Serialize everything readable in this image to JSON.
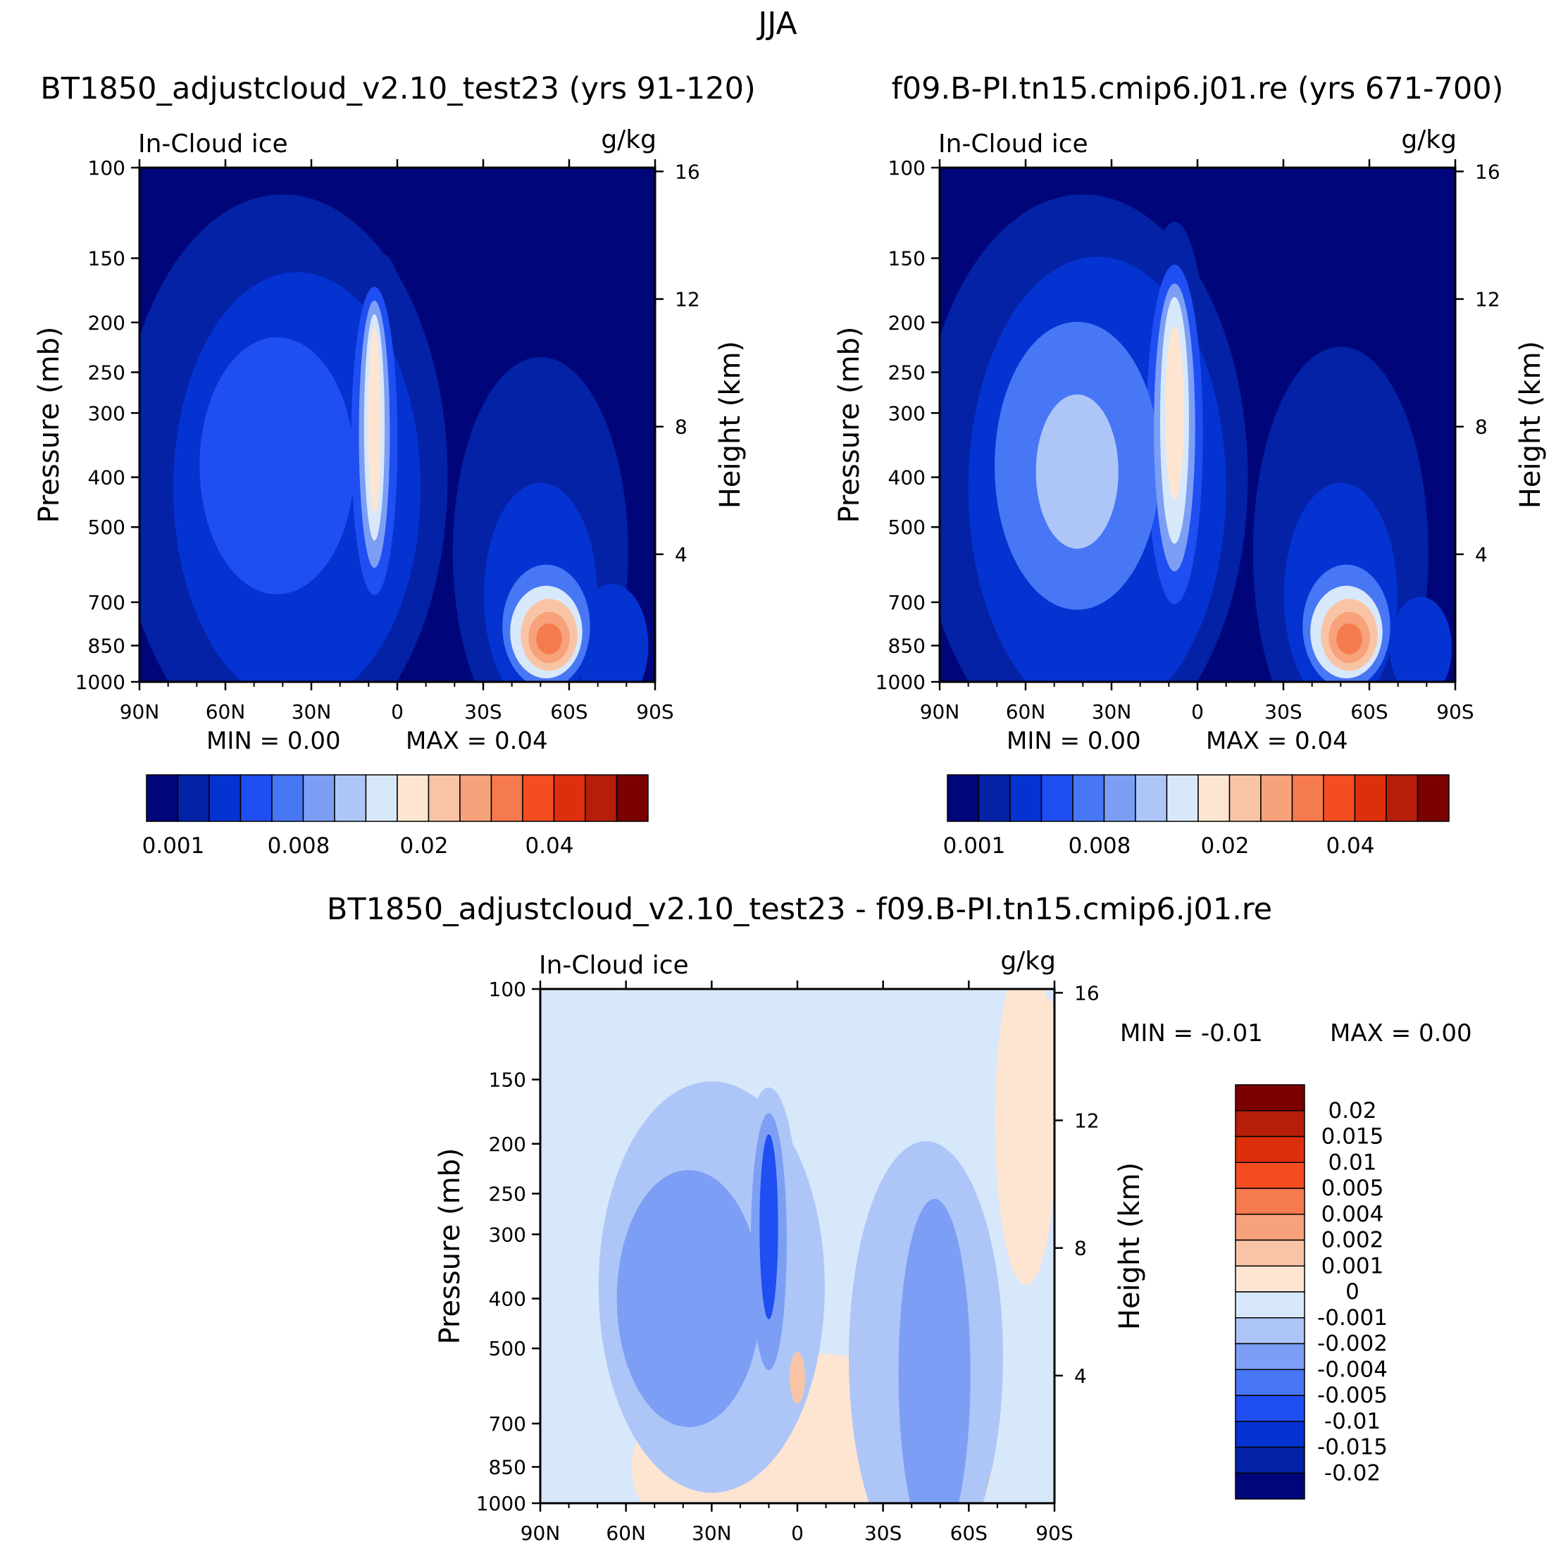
{
  "figure_title": "JJA",
  "colors": {
    "seq": [
      "#00067a",
      "#0322a6",
      "#0533d2",
      "#1f4ef2",
      "#4877f5",
      "#7c9ff5",
      "#aec6f7",
      "#d8e8fb",
      "#fde5d2",
      "#f9c4a5",
      "#f7a27a",
      "#f57a4e",
      "#f54d22",
      "#de2f0c",
      "#b61d0a",
      "#7b0000"
    ],
    "diff": [
      "#00067a",
      "#0322a6",
      "#0533d2",
      "#1f4ef2",
      "#4877f5",
      "#7c9ff5",
      "#aec6f7",
      "#d8e8fb",
      "#fde5d2",
      "#f9c4a5",
      "#f7a27a",
      "#f57a4e",
      "#f54d22",
      "#de2f0c",
      "#b61d0a",
      "#7b0000"
    ]
  },
  "chart_data": [
    {
      "id": "case",
      "type": "heatmap",
      "title": "BT1850_adjustcloud_v2.10_test23 (yrs 91-120)",
      "left_label": "In-Cloud ice",
      "right_label": "g/kg",
      "xlabel": "",
      "ylabel": "Pressure (mb)",
      "y2label": "Height (km)",
      "x_ticks": [
        "90N",
        "60N",
        "30N",
        "0",
        "30S",
        "60S",
        "90S"
      ],
      "y_ticks": [
        100,
        150,
        200,
        250,
        300,
        400,
        500,
        700,
        850,
        1000
      ],
      "y2_ticks": [
        16,
        12,
        8,
        4
      ],
      "ylim": [
        1000,
        100
      ],
      "min_text": "MIN =     0.00",
      "max_text": "MAX =     0.04",
      "colorbar_labels": [
        "0.001",
        "0.008",
        "0.02",
        "0.04"
      ],
      "blobs": [
        {
          "lat": 50,
          "p": 1000,
          "lev": 0
        },
        {
          "lat": -55,
          "p": 900,
          "lev": 0
        },
        {
          "lat": 25,
          "p": 340,
          "lev": 1
        },
        {
          "lat": -53,
          "p": 520,
          "lev": 1
        },
        {
          "lat": 8,
          "p": 320,
          "lev": 2
        },
        {
          "lat": 40,
          "p": 390,
          "lev": 2
        },
        {
          "lat": -52,
          "p": 760,
          "lev": 2
        },
        {
          "lat": 8,
          "p": 300,
          "lev": 6
        },
        {
          "lat": -52,
          "p": 800,
          "lev": 6
        },
        {
          "lat": -52,
          "p": 820,
          "lev": 12
        }
      ]
    },
    {
      "id": "control",
      "type": "heatmap",
      "title": "f09.B-PI.tn15.cmip6.j01.re (yrs 671-700)",
      "left_label": "In-Cloud ice",
      "right_label": "g/kg",
      "xlabel": "",
      "ylabel": "Pressure (mb)",
      "y2label": "Height (km)",
      "x_ticks": [
        "90N",
        "60N",
        "30N",
        "0",
        "30S",
        "60S",
        "90S"
      ],
      "y_ticks": [
        100,
        150,
        200,
        250,
        300,
        400,
        500,
        700,
        850,
        1000
      ],
      "y2_ticks": [
        16,
        12,
        8,
        4
      ],
      "ylim": [
        1000,
        100
      ],
      "min_text": "MIN =     0.00",
      "max_text": "MAX =     0.04",
      "colorbar_labels": [
        "0.001",
        "0.008",
        "0.02",
        "0.04"
      ],
      "blobs": [
        {
          "lat": 50,
          "p": 1000,
          "lev": 0
        },
        {
          "lat": -55,
          "p": 900,
          "lev": 0
        },
        {
          "lat": 25,
          "p": 330,
          "lev": 1
        },
        {
          "lat": -53,
          "p": 520,
          "lev": 1
        },
        {
          "lat": 10,
          "p": 300,
          "lev": 2
        },
        {
          "lat": 42,
          "p": 390,
          "lev": 3
        },
        {
          "lat": -52,
          "p": 760,
          "lev": 2
        },
        {
          "lat": 8,
          "p": 300,
          "lev": 8
        },
        {
          "lat": -52,
          "p": 800,
          "lev": 6
        },
        {
          "lat": -52,
          "p": 820,
          "lev": 12
        }
      ]
    },
    {
      "id": "difference",
      "type": "heatmap",
      "title": "BT1850_adjustcloud_v2.10_test23 - f09.B-PI.tn15.cmip6.j01.re",
      "left_label": "In-Cloud ice",
      "right_label": "g/kg",
      "xlabel": "",
      "ylabel": "Pressure (mb)",
      "y2label": "Height (km)",
      "x_ticks": [
        "90N",
        "60N",
        "30N",
        "0",
        "30S",
        "60S",
        "90S"
      ],
      "y_ticks": [
        100,
        150,
        200,
        250,
        300,
        400,
        500,
        700,
        850,
        1000
      ],
      "y2_ticks": [
        16,
        12,
        8,
        4
      ],
      "ylim": [
        1000,
        100
      ],
      "min_text": "MIN =   -0.01",
      "max_text": "MAX =     0.00",
      "colorbar_labels": [
        "0.02",
        "0.015",
        "0.01",
        "0.005",
        "0.004",
        "0.002",
        "0.001",
        "0",
        "-0.001",
        "-0.002",
        "-0.004",
        "-0.005",
        "-0.01",
        "-0.015",
        "-0.02"
      ],
      "blobs": [
        {
          "lat": -5,
          "p": 800,
          "lev": 8
        },
        {
          "lat": -80,
          "p": 200,
          "lev": 8
        },
        {
          "lat": 30,
          "p": 370,
          "lev": 6
        },
        {
          "lat": -45,
          "p": 480,
          "lev": 6
        },
        {
          "lat": 42,
          "p": 390,
          "lev": 5
        },
        {
          "lat": -45,
          "p": 520,
          "lev": 5
        },
        {
          "lat": 10,
          "p": 300,
          "lev": 3
        },
        {
          "lat": 0,
          "p": 560,
          "lev": 9
        }
      ]
    }
  ]
}
